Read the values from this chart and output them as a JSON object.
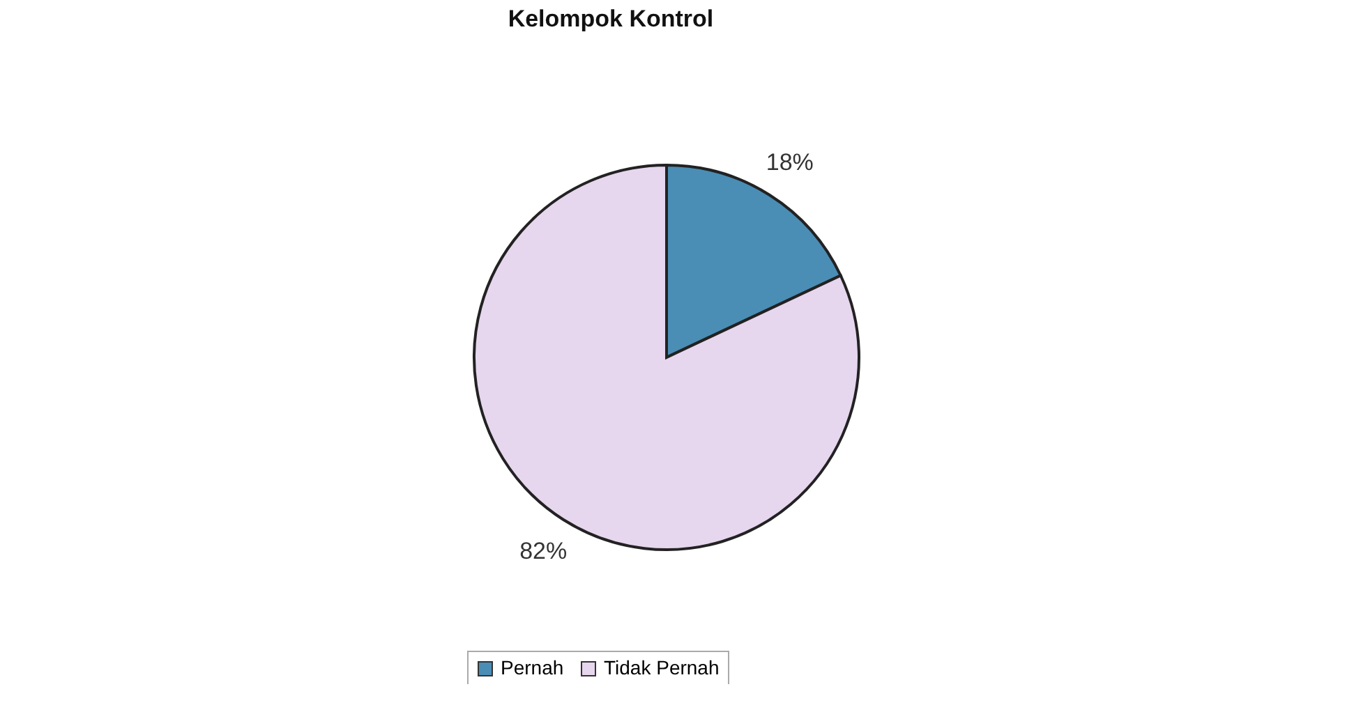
{
  "chart_data": {
    "type": "pie",
    "title": "Kelompok Kontrol",
    "categories": [
      "Pernah",
      "Tidak Pernah"
    ],
    "values": [
      18,
      82
    ],
    "colors": [
      "#4a8db5",
      "#e6d6ee"
    ],
    "value_labels": [
      "18%",
      "82%"
    ],
    "legend": "bottom"
  }
}
